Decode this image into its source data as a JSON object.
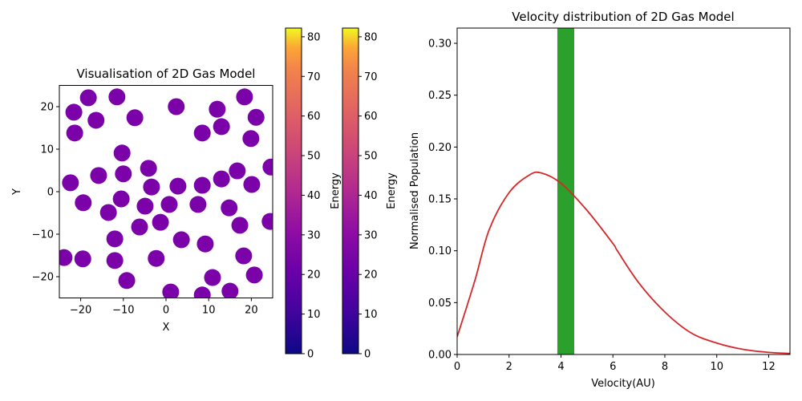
{
  "chart_data": [
    {
      "type": "scatter",
      "title": "Visualisation of 2D Gas Model",
      "xlabel": "X",
      "ylabel": "Y",
      "xlim": [
        -25,
        25
      ],
      "ylim": [
        -25,
        25
      ],
      "xticks": [
        -20,
        -10,
        0,
        10,
        20
      ],
      "yticks": [
        -20,
        -10,
        0,
        10,
        20
      ],
      "xtick_labels": [
        "−20",
        "−10",
        "0",
        "10",
        "20"
      ],
      "ytick_labels": [
        "−20",
        "−10",
        "0",
        "10",
        "20"
      ],
      "marker_color": "#7a02a8",
      "colormap": "plasma",
      "energy_value_approx": 24,
      "points": [
        [
          -21.6,
          18.7
        ],
        [
          -18.2,
          22.1
        ],
        [
          -11.5,
          22.3
        ],
        [
          -21.4,
          13.8
        ],
        [
          -16.4,
          16.8
        ],
        [
          -7.3,
          17.4
        ],
        [
          2.4,
          20.0
        ],
        [
          12.0,
          19.4
        ],
        [
          18.4,
          22.3
        ],
        [
          21.1,
          17.5
        ],
        [
          13.0,
          15.3
        ],
        [
          8.5,
          13.8
        ],
        [
          19.9,
          12.5
        ],
        [
          -10.3,
          9.1
        ],
        [
          -4.1,
          5.5
        ],
        [
          -15.8,
          3.8
        ],
        [
          -10.0,
          4.2
        ],
        [
          -22.4,
          2.1
        ],
        [
          -3.4,
          1.1
        ],
        [
          2.8,
          1.3
        ],
        [
          8.5,
          1.5
        ],
        [
          13.0,
          3.0
        ],
        [
          16.7,
          4.9
        ],
        [
          20.1,
          1.7
        ],
        [
          24.6,
          5.8
        ],
        [
          -10.5,
          -1.7
        ],
        [
          -19.4,
          -2.6
        ],
        [
          -13.5,
          -4.9
        ],
        [
          -4.9,
          -3.4
        ],
        [
          0.75,
          -3.0
        ],
        [
          7.5,
          -3.0
        ],
        [
          14.8,
          -3.8
        ],
        [
          -6.2,
          -8.3
        ],
        [
          -1.3,
          -7.2
        ],
        [
          -12.0,
          -11.1
        ],
        [
          3.6,
          -11.3
        ],
        [
          9.2,
          -12.3
        ],
        [
          17.3,
          -7.9
        ],
        [
          24.4,
          -7.0
        ],
        [
          -23.9,
          -15.5
        ],
        [
          -19.5,
          -15.8
        ],
        [
          -12.0,
          -16.2
        ],
        [
          -2.3,
          -15.7
        ],
        [
          18.2,
          -15.1
        ],
        [
          -9.2,
          -20.9
        ],
        [
          10.9,
          -20.2
        ],
        [
          20.7,
          -19.6
        ],
        [
          1.1,
          -23.6
        ],
        [
          8.5,
          -24.3
        ],
        [
          15.0,
          -23.4
        ]
      ]
    },
    {
      "type": "colorbar",
      "label": "Energy",
      "colormap": "plasma",
      "range": [
        0,
        82.2
      ],
      "ticks": [
        0,
        10,
        20,
        30,
        40,
        50,
        60,
        70,
        80
      ],
      "tick_labels": [
        "0",
        "10",
        "20",
        "30",
        "40",
        "50",
        "60",
        "70",
        "80"
      ]
    },
    {
      "type": "colorbar",
      "label": "Energy",
      "colormap": "plasma",
      "range": [
        0,
        82.2
      ],
      "ticks": [
        0,
        10,
        20,
        30,
        40,
        50,
        60,
        70,
        80
      ],
      "tick_labels": [
        "0",
        "10",
        "20",
        "30",
        "40",
        "50",
        "60",
        "70",
        "80"
      ]
    },
    {
      "type": "bar+line",
      "title": "Velocity distribution of 2D Gas Model",
      "xlabel": "Velocity(AU)",
      "ylabel": "Normalised Population",
      "xlim": [
        0,
        12.82
      ],
      "ylim": [
        0,
        0.3147
      ],
      "xticks": [
        0,
        2,
        4,
        6,
        8,
        10,
        12
      ],
      "xtick_labels": [
        "0",
        "2",
        "4",
        "6",
        "8",
        "10",
        "12"
      ],
      "yticks": [
        0,
        0.05,
        0.1,
        0.15,
        0.2,
        0.25,
        0.3
      ],
      "ytick_labels": [
        "0.00",
        "0.05",
        "0.10",
        "0.15",
        "0.20",
        "0.25",
        "0.30"
      ],
      "bars": [
        {
          "x_start": 3.86,
          "x_end": 4.51,
          "height": 0.3147,
          "color": "#2ca02c",
          "note": "extends past top of axes"
        }
      ],
      "line": {
        "color": "#d62728",
        "x": [
          0,
          0.68,
          1.23,
          2.0,
          2.78,
          3.24,
          4.0,
          5.0,
          6.0,
          6.17,
          7.0,
          8.0,
          9.0,
          10.0,
          11.0,
          12.0,
          12.82
        ],
        "y": [
          0.017,
          0.071,
          0.12,
          0.156,
          0.173,
          0.175,
          0.165,
          0.139,
          0.107,
          0.1,
          0.069,
          0.041,
          0.021,
          0.011,
          0.005,
          0.002,
          0.001
        ]
      }
    }
  ]
}
